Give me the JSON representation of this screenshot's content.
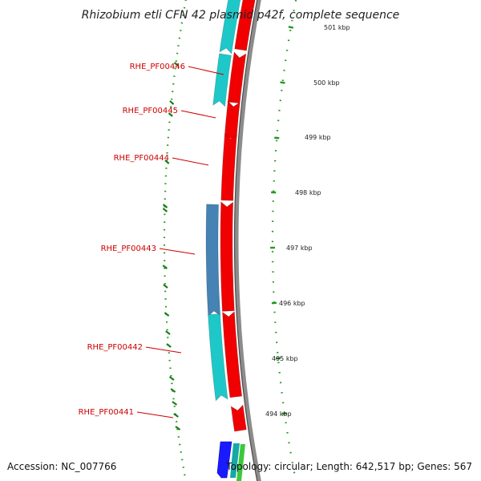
{
  "title": "Rhizobium etli CFN 42 plasmid p42f, complete sequence",
  "footer": {
    "accession": "Accession: NC_007766",
    "summary": "Topology: circular; Length: 642,517 bp; Genes: 567"
  },
  "colors": {
    "backbone": "#8c8c8c",
    "forward_gene": "#f00000",
    "reverse_gene_cyan": "#1ec8c8",
    "reverse_gene_steel": "#4682b4",
    "label": "#cc0000",
    "kbp_dots": "#229922",
    "gene_marks": "#1a7f1a",
    "extra_blue": "#1a1aff",
    "extra_green": "#3cc83c"
  },
  "kbp_ticks": [
    {
      "label": "501 kbp"
    },
    {
      "label": "500 kbp"
    },
    {
      "label": "499 kbp"
    },
    {
      "label": "498 kbp"
    },
    {
      "label": "497 kbp"
    },
    {
      "label": "496 kbp"
    },
    {
      "label": "495 kbp"
    },
    {
      "label": "494 kbp"
    }
  ],
  "gene_labels": [
    {
      "name": "RHE_PF00446"
    },
    {
      "name": "RHE_PF00445"
    },
    {
      "name": "RHE_PF00444"
    },
    {
      "name": "RHE_PF00443"
    },
    {
      "name": "RHE_PF00442"
    },
    {
      "name": "RHE_PF00441"
    }
  ]
}
